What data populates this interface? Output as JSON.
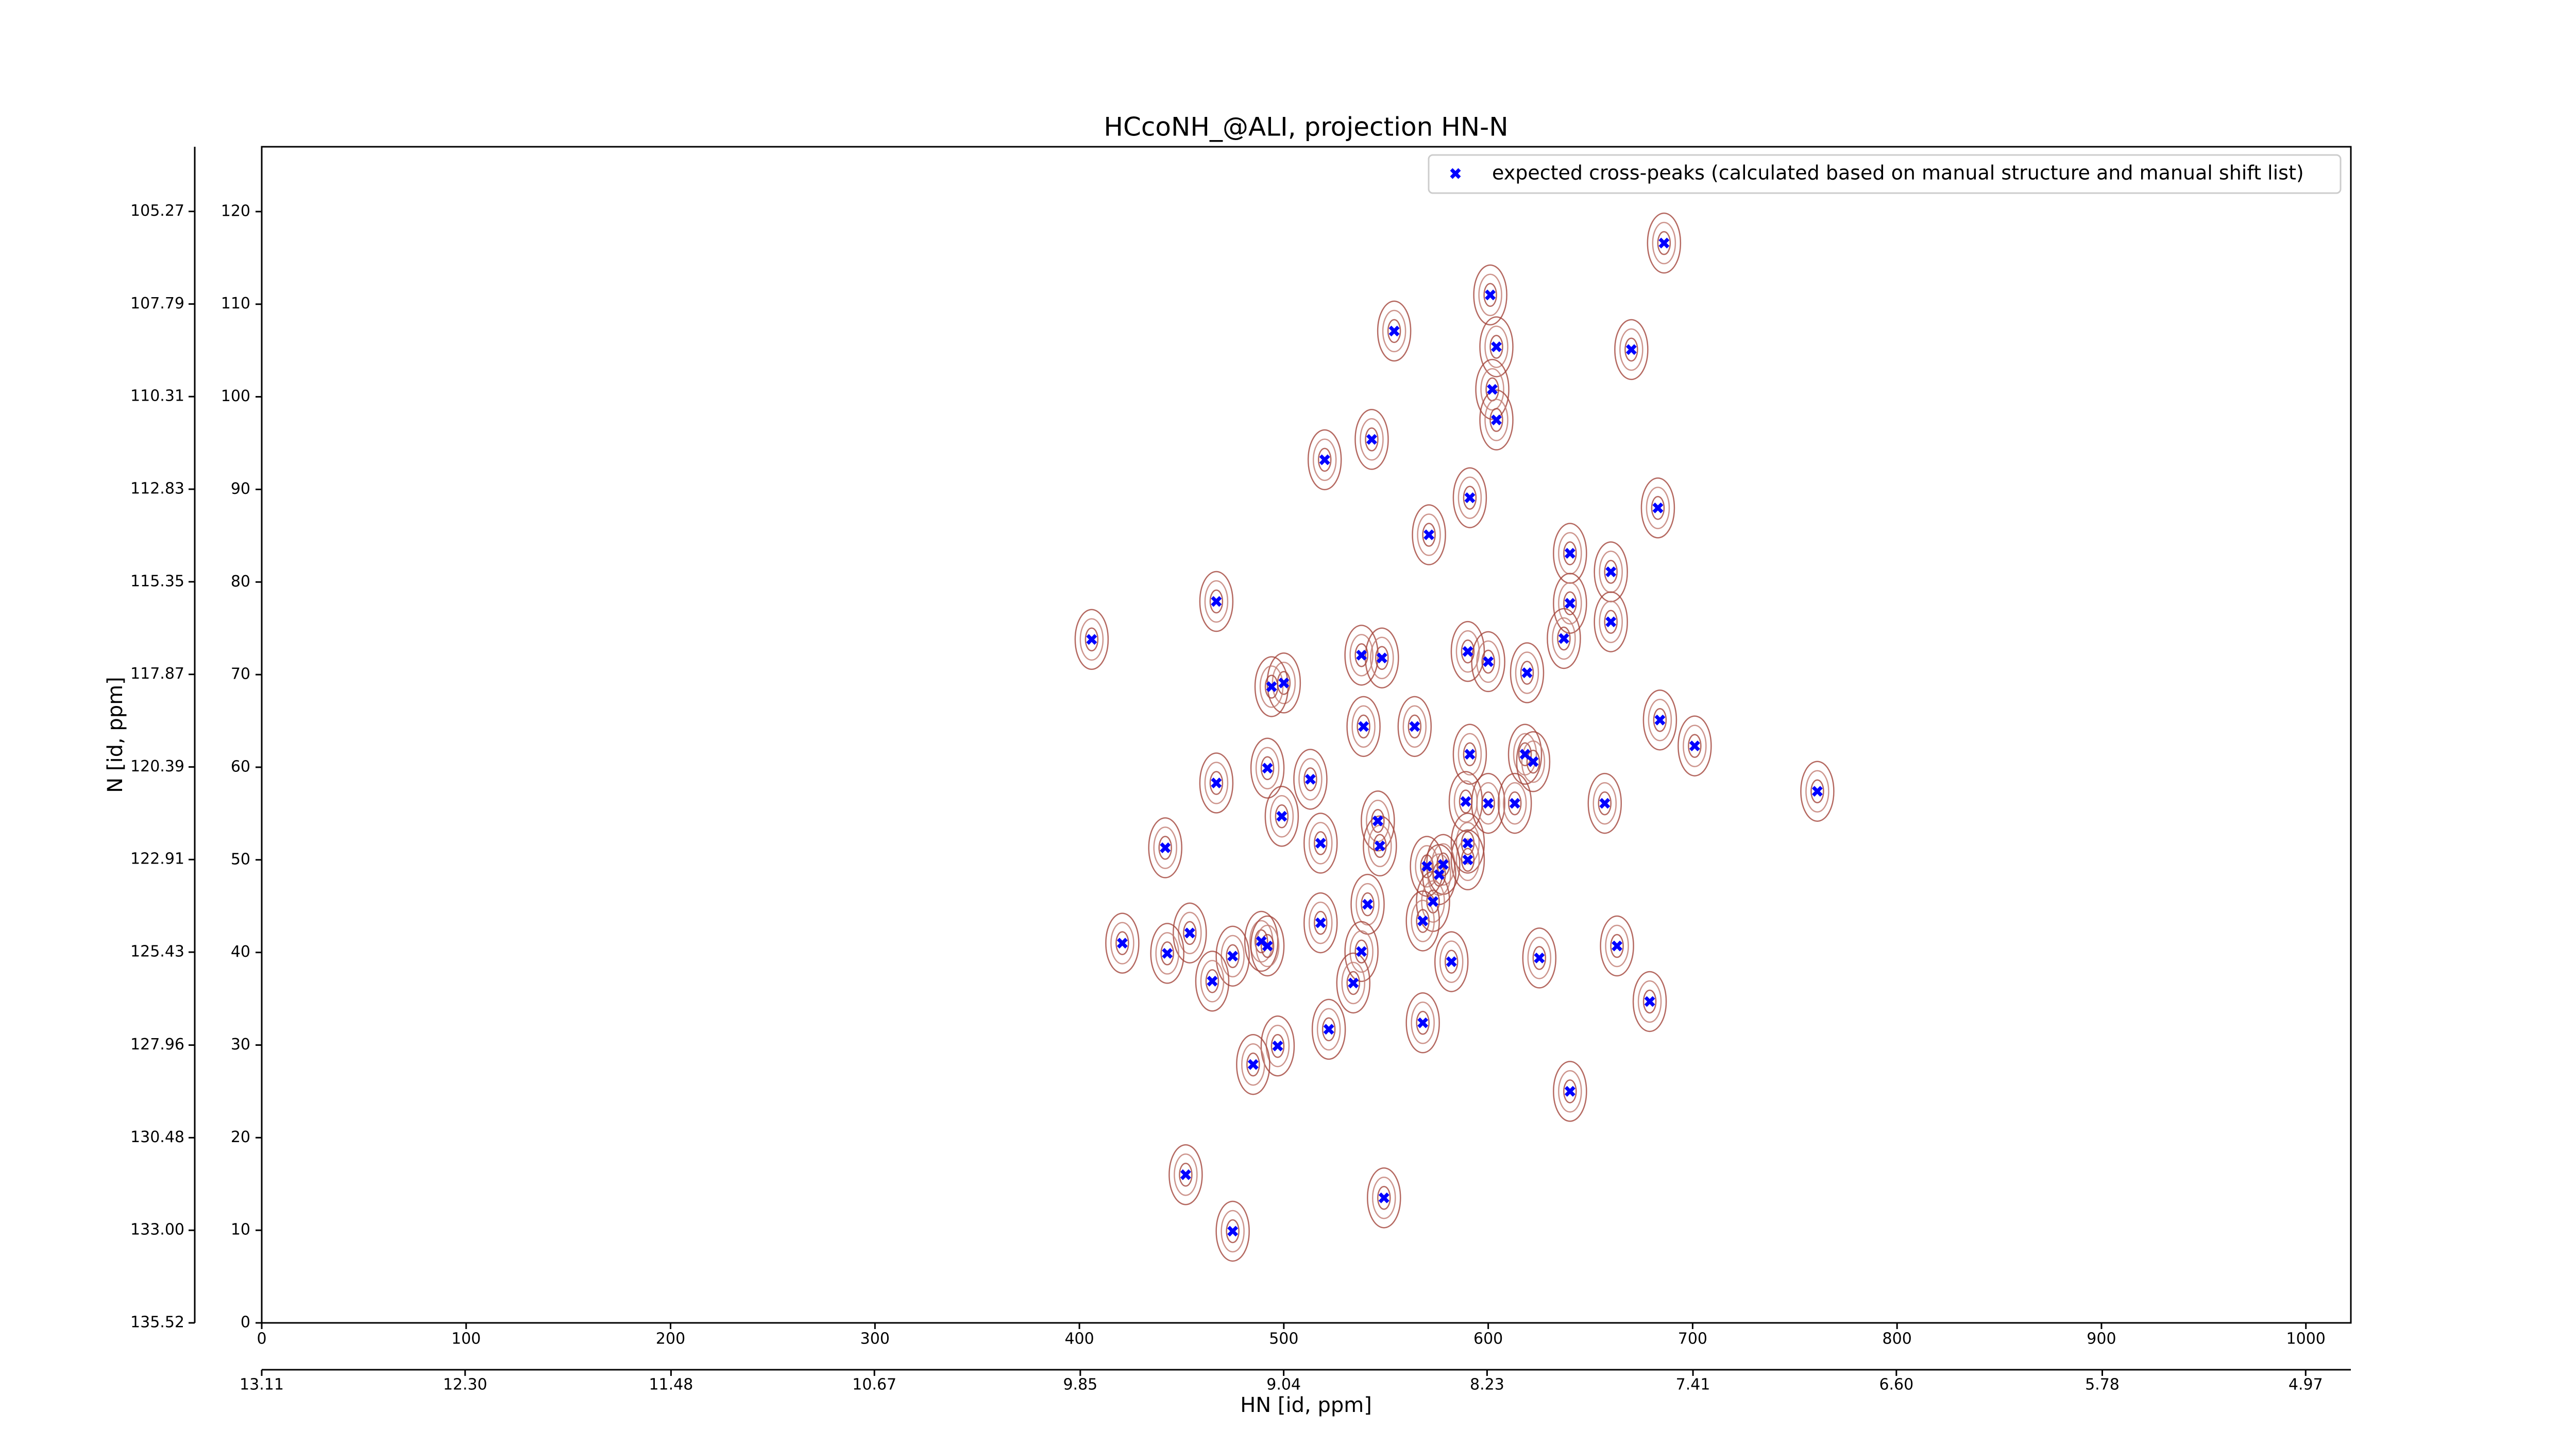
{
  "chart_data": {
    "type": "scatter",
    "title": "HCcoNH_@ALI, projection HN-N",
    "xlabel": "HN [id, ppm]",
    "ylabel": "N [id, ppm]",
    "legend": "upper right",
    "xlim": [
      0,
      1022
    ],
    "ylim": [
      0,
      127
    ],
    "xticks": [
      0,
      100,
      200,
      300,
      400,
      500,
      600,
      700,
      800,
      900,
      1000
    ],
    "yticks": [
      0,
      10,
      20,
      30,
      40,
      50,
      60,
      70,
      80,
      90,
      100,
      110,
      120
    ],
    "x2lim": [
      13.11,
      4.79
    ],
    "x2ticks": [
      13.11,
      {
        "value": 12.3,
        "label": "12.30"
      },
      11.48,
      10.67,
      9.85,
      9.04,
      8.23,
      7.41,
      {
        "value": 6.6,
        "label": "6.60"
      },
      5.78,
      4.97
    ],
    "y2lim": [
      135.52,
      103.51
    ],
    "y2ticks": [
      135.52,
      {
        "value": 133,
        "label": "133.00"
      },
      130.48,
      127.96,
      125.43,
      122.91,
      120.39,
      117.87,
      115.35,
      112.83,
      110.31,
      107.79,
      105.27
    ],
    "series": [
      {
        "name": "expected cross-peaks (calculated based on manual structure and manual shift list)",
        "color": "#0000ff",
        "x": [
          686,
          601,
          554,
          604,
          670,
          602,
          604,
          543,
          520,
          591,
          683,
          571,
          640,
          660,
          640,
          467,
          660,
          637,
          406,
          590,
          600,
          538,
          548,
          619,
          500,
          494,
          684,
          539,
          564,
          701,
          591,
          618,
          622,
          492,
          513,
          467,
          761,
          589,
          600,
          613,
          657,
          499,
          546,
          547,
          518,
          590,
          442,
          590,
          570,
          578,
          576,
          573,
          541,
          518,
          568,
          454,
          421,
          489,
          492,
          663,
          443,
          475,
          538,
          625,
          582,
          465,
          534,
          679,
          568,
          522,
          497,
          485,
          640,
          452,
          549,
          475
        ],
        "values": [
          116.6,
          111.0,
          107.1,
          105.4,
          105.1,
          100.8,
          97.5,
          95.4,
          93.2,
          89.1,
          88.0,
          85.1,
          83.1,
          81.1,
          77.7,
          77.9,
          75.7,
          73.9,
          73.8,
          72.5,
          71.4,
          72.1,
          71.8,
          70.2,
          69.1,
          68.7,
          65.1,
          64.4,
          64.4,
          62.3,
          61.4,
          61.4,
          60.6,
          59.9,
          58.7,
          58.3,
          57.4,
          56.3,
          56.1,
          56.1,
          56.1,
          54.7,
          54.2,
          51.5,
          51.8,
          51.8,
          51.3,
          50.0,
          49.3,
          49.5,
          48.4,
          45.5,
          45.2,
          43.2,
          43.4,
          42.1,
          41.0,
          41.2,
          40.7,
          40.7,
          39.9,
          39.6,
          40.1,
          39.4,
          39.0,
          36.9,
          36.7,
          34.7,
          32.4,
          31.7,
          29.9,
          27.9,
          25.0,
          16.0,
          13.5,
          9.9
        ]
      }
    ]
  }
}
